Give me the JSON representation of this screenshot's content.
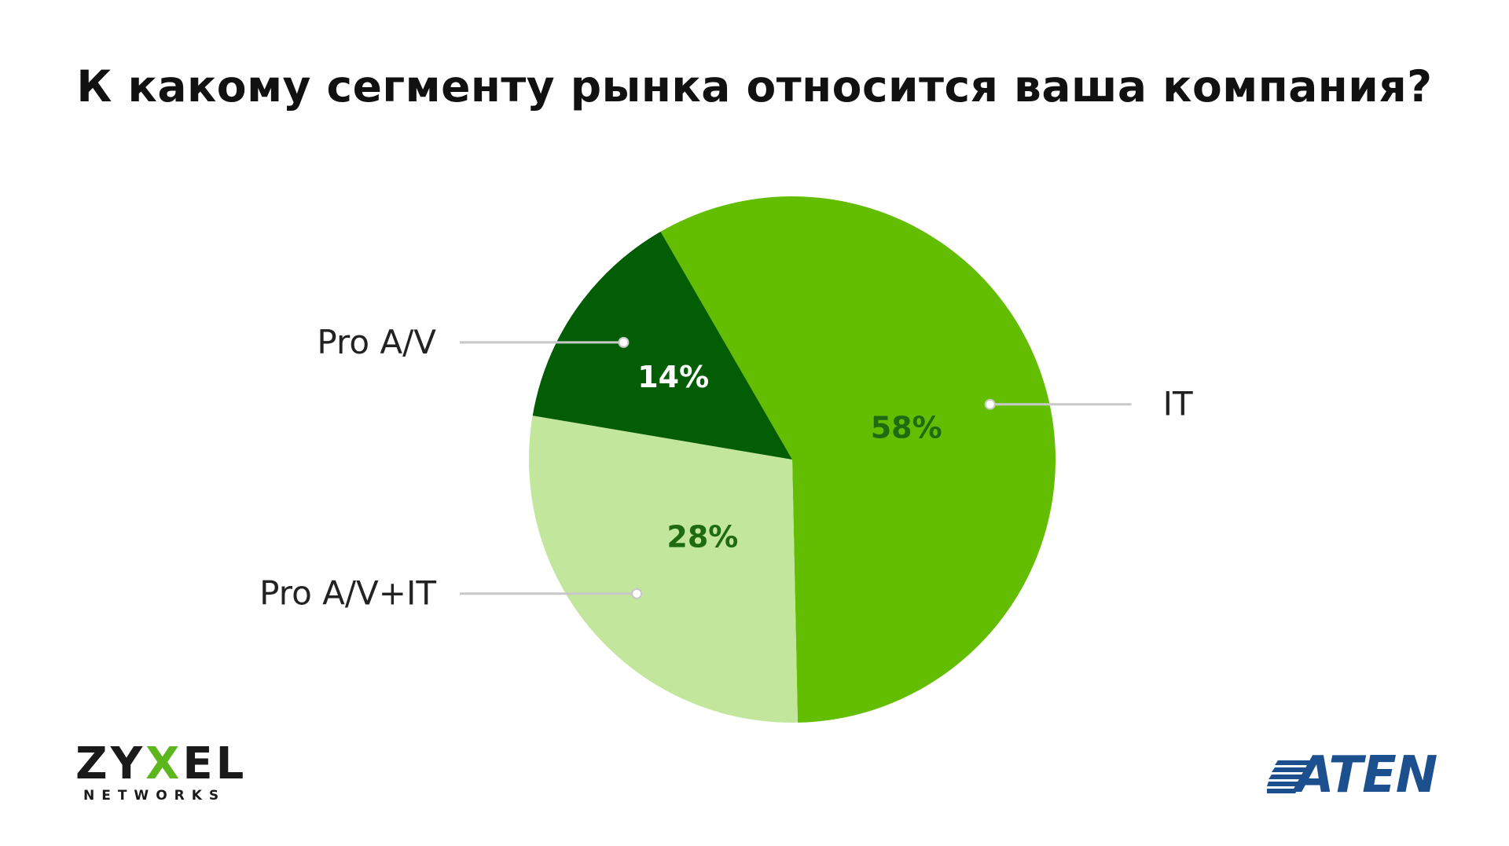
{
  "chart_data": {
    "type": "pie",
    "title": "К какому сегменту рынка относится ваша компания?",
    "slices": [
      {
        "label": "IT",
        "value": 58,
        "value_label": "58%",
        "color": "#63be02",
        "text_color": "#1e6b10"
      },
      {
        "label": "Pro A/V+IT",
        "value": 28,
        "value_label": "28%",
        "color": "#c2e69b",
        "text_color": "#1e6b10"
      },
      {
        "label": "Pro A/V",
        "value": 14,
        "value_label": "14%",
        "color": "#035d04",
        "text_color": "#ffffff"
      }
    ],
    "start_angle_deg": 90,
    "direction": "clockwise",
    "legend": "none"
  },
  "logos": {
    "zyxel": {
      "word_a": "ZY",
      "word_x": "X",
      "word_b": "EL",
      "sub": "NETWORKS"
    },
    "aten": {
      "word": "ATEN"
    }
  },
  "colors": {
    "leader_line": "#c8c8c8",
    "zyxel_accent": "#5db61e",
    "aten_blue": "#1c4f8e"
  }
}
